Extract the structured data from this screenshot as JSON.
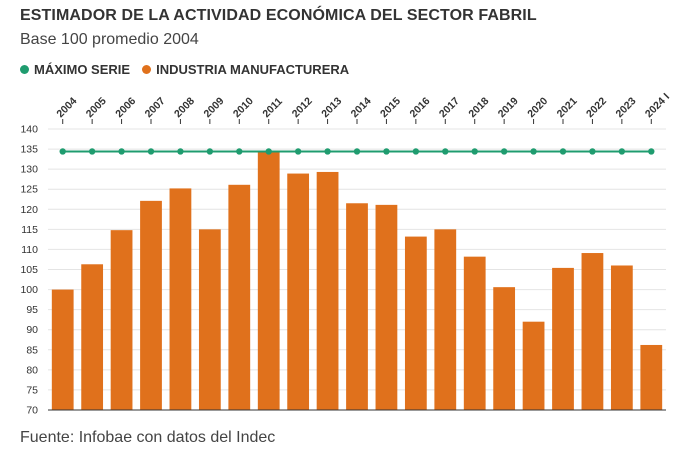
{
  "title": "ESTIMADOR DE LA ACTIVIDAD ECONÓMICA DEL SECTOR FABRIL",
  "subtitle": "Base 100 promedio 2004",
  "source": "Fuente: Infobae con datos del Indec",
  "colors": {
    "max": "#1f9c6f",
    "bars": "#e0711c",
    "grid": "#e4e4e4",
    "axis": "#333333"
  },
  "chart_data": {
    "type": "bar",
    "categories": [
      "2004",
      "2005",
      "2006",
      "2007",
      "2008",
      "2009",
      "2010",
      "2011",
      "2012",
      "2013",
      "2014",
      "2015",
      "2016",
      "2017",
      "2018",
      "2019",
      "2020",
      "2021",
      "2022",
      "2023",
      "2024 I"
    ],
    "series": [
      {
        "name": "INDUSTRIA MANUFACTURERA",
        "type": "bar",
        "values": [
          100,
          106.3,
          114.8,
          122.1,
          125.2,
          115,
          126.1,
          134.4,
          128.9,
          129.3,
          121.5,
          121.1,
          113.2,
          115,
          108.2,
          100.6,
          92,
          105.4,
          109.1,
          106,
          86.2
        ]
      },
      {
        "name": "MÁXIMO SERIE",
        "type": "line",
        "values": [
          134.4,
          134.4,
          134.4,
          134.4,
          134.4,
          134.4,
          134.4,
          134.4,
          134.4,
          134.4,
          134.4,
          134.4,
          134.4,
          134.4,
          134.4,
          134.4,
          134.4,
          134.4,
          134.4,
          134.4,
          134.4
        ]
      }
    ],
    "ylim": [
      70,
      140
    ],
    "yticks": [
      70,
      75,
      80,
      85,
      90,
      95,
      100,
      105,
      110,
      115,
      120,
      125,
      130,
      135,
      140
    ],
    "grid": true,
    "legend": "top-left"
  }
}
